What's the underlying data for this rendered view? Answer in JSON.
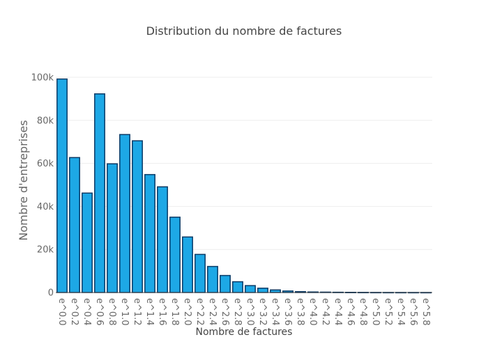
{
  "chart_data": {
    "type": "bar",
    "title": "Distribution du nombre de factures",
    "xlabel": "Nombre de factures",
    "ylabel": "Nombre d'entreprises",
    "categories": [
      "e^0.0",
      "e^0.2",
      "e^0.4",
      "e^0.6",
      "e^0.8",
      "e^1.0",
      "e^1.2",
      "e^1.4",
      "e^1.6",
      "e^1.8",
      "e^2.0",
      "e^2.2",
      "e^2.4",
      "e^2.6",
      "e^2.8",
      "e^3.0",
      "e^3.2",
      "e^3.4",
      "e^3.6",
      "e^3.8",
      "e^4.0",
      "e^4.2",
      "e^4.4",
      "e^4.6",
      "e^4.8",
      "e^5.0",
      "e^5.2",
      "e^5.4",
      "e^5.6",
      "e^5.8"
    ],
    "values": [
      99200,
      62700,
      46200,
      92300,
      59800,
      73400,
      70500,
      54800,
      49100,
      35000,
      25800,
      17700,
      12100,
      7900,
      5000,
      3200,
      2000,
      1200,
      700,
      400,
      250,
      180,
      120,
      80,
      60,
      40,
      30,
      25,
      20,
      15
    ],
    "ylim": [
      0,
      100000
    ],
    "yticks": [
      0,
      20000,
      40000,
      60000,
      80000,
      100000
    ],
    "ytick_labels": [
      "0",
      "20k",
      "40k",
      "60k",
      "80k",
      "100k"
    ],
    "grid": true,
    "legend": "none",
    "bar_color": "#1da8e6",
    "bar_outline_color": "#0a3a66"
  }
}
